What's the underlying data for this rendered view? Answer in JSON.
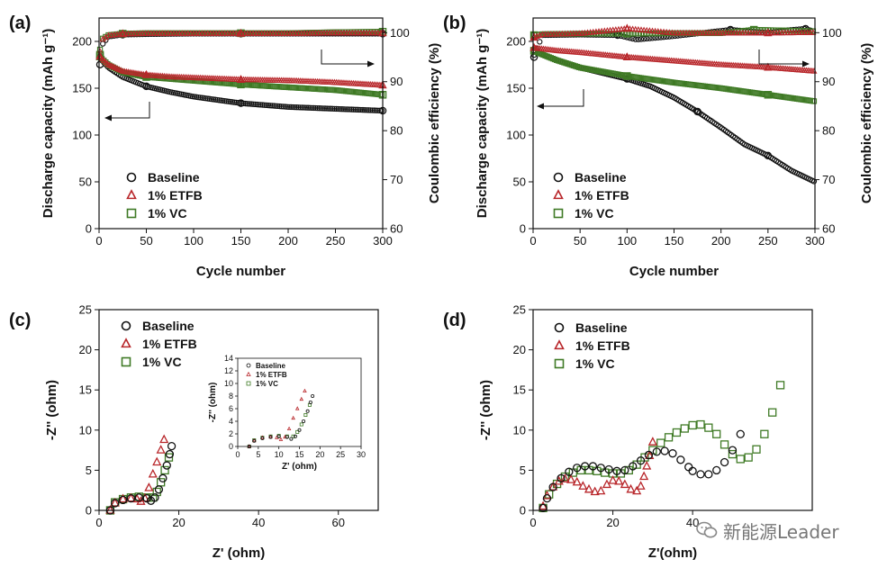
{
  "colors": {
    "baseline": "#111111",
    "etfb": "#b8262a",
    "vc": "#3f7a25"
  },
  "watermark": {
    "text": "新能源Leader",
    "icon": "wechat-icon"
  },
  "chart_data": [
    {
      "panel": "(a)",
      "type": "scatter",
      "xlabel": "Cycle number",
      "ylabel": "Discharge capacity (mAh g⁻¹)",
      "y2label": "Coulombic efficiency (%)",
      "xlim": [
        0,
        300
      ],
      "ylim": [
        0,
        225
      ],
      "y2lim": [
        60,
        103
      ],
      "xticks": [
        "0",
        "50",
        "100",
        "150",
        "200",
        "250",
        "300"
      ],
      "yticks": [
        "0",
        "50",
        "100",
        "150",
        "200"
      ],
      "y2ticks": [
        "60",
        "70",
        "80",
        "90",
        "100"
      ],
      "legend": [
        "Baseline",
        "1% ETFB",
        "1% VC"
      ],
      "series": [
        {
          "name": "Baseline",
          "axis": "capacity",
          "marker": "circle",
          "x": [
            0,
            10,
            25,
            50,
            75,
            100,
            150,
            200,
            250,
            300
          ],
          "y": [
            183,
            172,
            162,
            152,
            146,
            141,
            134,
            130,
            128,
            126
          ]
        },
        {
          "name": "1% ETFB",
          "axis": "capacity",
          "marker": "triangle",
          "x": [
            0,
            10,
            25,
            50,
            75,
            100,
            150,
            200,
            250,
            300
          ],
          "y": [
            184,
            175,
            168,
            164,
            162,
            161,
            159,
            158,
            156,
            153
          ]
        },
        {
          "name": "1% VC",
          "axis": "capacity",
          "marker": "square",
          "x": [
            0,
            10,
            25,
            50,
            75,
            100,
            150,
            200,
            250,
            300
          ],
          "y": [
            184,
            175,
            167,
            162,
            160,
            158,
            154,
            151,
            148,
            143
          ]
        },
        {
          "name": "Baseline",
          "axis": "efficiency",
          "marker": "circle",
          "x": [
            0,
            3,
            10,
            25,
            50,
            100,
            150,
            200,
            250,
            300
          ],
          "y": [
            93.5,
            97.5,
            99.2,
            99.6,
            99.7,
            99.8,
            99.8,
            99.8,
            99.8,
            99.8
          ]
        },
        {
          "name": "1% ETFB",
          "axis": "efficiency",
          "marker": "triangle",
          "x": [
            0,
            3,
            10,
            25,
            50,
            100,
            150,
            200,
            250,
            300
          ],
          "y": [
            95,
            98.5,
            99.4,
            99.7,
            99.8,
            99.8,
            99.8,
            99.8,
            99.9,
            99.9
          ]
        },
        {
          "name": "1% VC",
          "axis": "efficiency",
          "marker": "square",
          "x": [
            0,
            3,
            10,
            25,
            50,
            100,
            150,
            200,
            250,
            300
          ],
          "y": [
            95.5,
            98.7,
            99.5,
            99.8,
            99.9,
            99.9,
            99.9,
            99.9,
            100.1,
            100.2
          ]
        }
      ]
    },
    {
      "panel": "(b)",
      "type": "scatter",
      "xlabel": "Cycle number",
      "ylabel": "Discharge capacity (mAh g⁻¹)",
      "y2label": "Coulombic efficiency (%)",
      "xlim": [
        0,
        300
      ],
      "ylim": [
        0,
        225
      ],
      "y2lim": [
        60,
        103
      ],
      "xticks": [
        "0",
        "50",
        "100",
        "150",
        "200",
        "250",
        "300"
      ],
      "yticks": [
        "0",
        "50",
        "100",
        "150",
        "200"
      ],
      "y2ticks": [
        "60",
        "70",
        "80",
        "90",
        "100"
      ],
      "legend": [
        "Baseline",
        "1% ETFB",
        "1% VC"
      ],
      "series": [
        {
          "name": "Baseline",
          "axis": "capacity",
          "marker": "circle",
          "x": [
            0,
            25,
            50,
            100,
            125,
            150,
            175,
            200,
            225,
            250,
            275,
            300
          ],
          "y": [
            190,
            180,
            172,
            160,
            152,
            140,
            125,
            108,
            90,
            78,
            62,
            50
          ]
        },
        {
          "name": "1% ETFB",
          "axis": "capacity",
          "marker": "triangle",
          "x": [
            0,
            25,
            50,
            100,
            150,
            200,
            250,
            300
          ],
          "y": [
            193,
            190,
            188,
            183,
            179,
            175,
            172,
            168
          ]
        },
        {
          "name": "1% VC",
          "axis": "capacity",
          "marker": "square",
          "x": [
            0,
            25,
            50,
            100,
            150,
            200,
            250,
            300
          ],
          "y": [
            190,
            180,
            172,
            163,
            156,
            150,
            143,
            136
          ]
        },
        {
          "name": "Baseline",
          "axis": "efficiency",
          "marker": "circle",
          "x": [
            0,
            10,
            50,
            90,
            110,
            150,
            210,
            250,
            270,
            290,
            300
          ],
          "y": [
            95,
            99.5,
            99.6,
            99.5,
            98.6,
            99.3,
            100.6,
            100,
            100.5,
            100.8,
            100.2
          ]
        },
        {
          "name": "1% ETFB",
          "axis": "efficiency",
          "marker": "triangle",
          "x": [
            0,
            10,
            50,
            100,
            150,
            200,
            250,
            300
          ],
          "y": [
            99,
            99.6,
            99.8,
            100.8,
            99.9,
            99.9,
            99.9,
            100
          ]
        },
        {
          "name": "1% VC",
          "axis": "efficiency",
          "marker": "square",
          "x": [
            0,
            10,
            50,
            100,
            150,
            200,
            235,
            300
          ],
          "y": [
            99.5,
            99.7,
            99.8,
            99.8,
            99.9,
            99.9,
            100.6,
            100.3
          ]
        }
      ]
    },
    {
      "panel": "(c)",
      "type": "scatter",
      "xlabel": "Z' (ohm)",
      "ylabel": "-Z'' (ohm)",
      "xlim": [
        0,
        70
      ],
      "ylim": [
        0,
        25
      ],
      "xticks": [
        "0",
        "20",
        "40",
        "60"
      ],
      "yticks": [
        "0",
        "5",
        "10",
        "15",
        "20",
        "25"
      ],
      "legend": [
        "Baseline",
        "1% ETFB",
        "1% VC"
      ],
      "series": [
        {
          "name": "Baseline",
          "marker": "circle",
          "x": [
            2.8,
            4,
            6,
            8,
            10,
            12,
            13,
            14,
            15,
            16,
            17,
            17.7,
            18.2
          ],
          "y": [
            0,
            0.9,
            1.3,
            1.5,
            1.6,
            1.5,
            1.2,
            1.6,
            2.6,
            4,
            5.6,
            7,
            8
          ]
        },
        {
          "name": "1% ETFB",
          "marker": "triangle",
          "x": [
            2.8,
            4,
            6,
            8,
            9.5,
            10.5,
            11.5,
            12.5,
            13.5,
            14.5,
            15.5,
            16.3
          ],
          "y": [
            0,
            0.9,
            1.4,
            1.5,
            1.4,
            1.1,
            1.5,
            2.8,
            4.5,
            6,
            7.5,
            8.8
          ]
        },
        {
          "name": "1% VC",
          "marker": "square",
          "x": [
            2.8,
            4,
            6,
            8,
            10,
            12,
            13.5,
            14.5,
            15.5,
            16.5,
            17.5
          ],
          "y": [
            0,
            1,
            1.4,
            1.6,
            1.7,
            1.6,
            1.6,
            2.3,
            3.5,
            5,
            6.6
          ]
        }
      ],
      "inset": {
        "xlabel": "Z' (ohm)",
        "ylabel": "-Z'' (ohm)",
        "xlim": [
          0,
          30
        ],
        "ylim": [
          0,
          14
        ],
        "xticks": [
          "0",
          "5",
          "10",
          "15",
          "20",
          "25",
          "30"
        ],
        "yticks": [
          "0",
          "2",
          "4",
          "6",
          "8",
          "10",
          "12",
          "14"
        ],
        "legend": [
          "Baseline",
          "1% ETFB",
          "1% VC"
        ]
      }
    },
    {
      "panel": "(d)",
      "type": "scatter",
      "xlabel": "Z'(ohm)",
      "ylabel": "-Z'' (ohm)",
      "xlim": [
        0,
        70
      ],
      "ylim": [
        0,
        25
      ],
      "xticks": [
        "0",
        "20",
        "40"
      ],
      "yticks": [
        "0",
        "5",
        "10",
        "15",
        "20",
        "25"
      ],
      "legend": [
        "Baseline",
        "1% ETFB",
        "1% VC"
      ],
      "series": [
        {
          "name": "Baseline",
          "marker": "circle",
          "x": [
            2.5,
            3.5,
            5,
            7,
            9,
            11,
            13,
            15,
            17,
            19,
            21,
            23,
            25,
            27,
            29,
            31,
            33,
            35,
            37,
            39,
            40,
            42,
            44,
            46,
            48,
            50,
            52
          ],
          "y": [
            0.3,
            1.5,
            2.9,
            4,
            4.8,
            5.3,
            5.5,
            5.5,
            5.3,
            5.1,
            4.9,
            5,
            5.5,
            6.2,
            6.9,
            7.3,
            7.4,
            7.1,
            6.3,
            5.4,
            4.9,
            4.5,
            4.5,
            5,
            6,
            7.5,
            9.5
          ]
        },
        {
          "name": "1% ETFB",
          "marker": "triangle",
          "x": [
            2.5,
            3.5,
            5,
            6.5,
            8,
            9.5,
            11,
            12.5,
            14,
            15.5,
            17,
            18.5,
            20,
            21.5,
            23,
            24.5,
            26,
            27,
            27.8,
            28.5,
            29.2,
            30
          ],
          "y": [
            0.5,
            1.8,
            2.9,
            3.6,
            3.9,
            3.8,
            3.5,
            3,
            2.6,
            2.3,
            2.4,
            3.2,
            3.7,
            3.6,
            3.2,
            2.6,
            2.4,
            3,
            4.2,
            5.5,
            6.8,
            8.5
          ]
        },
        {
          "name": "1% VC",
          "marker": "square",
          "x": [
            2.5,
            4,
            6,
            8,
            10,
            12,
            14,
            16,
            18,
            20,
            22,
            24,
            26,
            28,
            30,
            32,
            34,
            36,
            38,
            40,
            42,
            44,
            46,
            48,
            50,
            52,
            54,
            56,
            58,
            60,
            62
          ],
          "y": [
            0.3,
            2,
            3.3,
            4.2,
            4.7,
            5,
            5,
            4.9,
            4.7,
            4.6,
            4.6,
            5,
            5.7,
            6.6,
            7.5,
            8.4,
            9.1,
            9.7,
            10.2,
            10.6,
            10.7,
            10.3,
            9.5,
            8.2,
            7,
            6.4,
            6.6,
            7.6,
            9.5,
            12.2,
            15.6
          ]
        }
      ]
    }
  ]
}
